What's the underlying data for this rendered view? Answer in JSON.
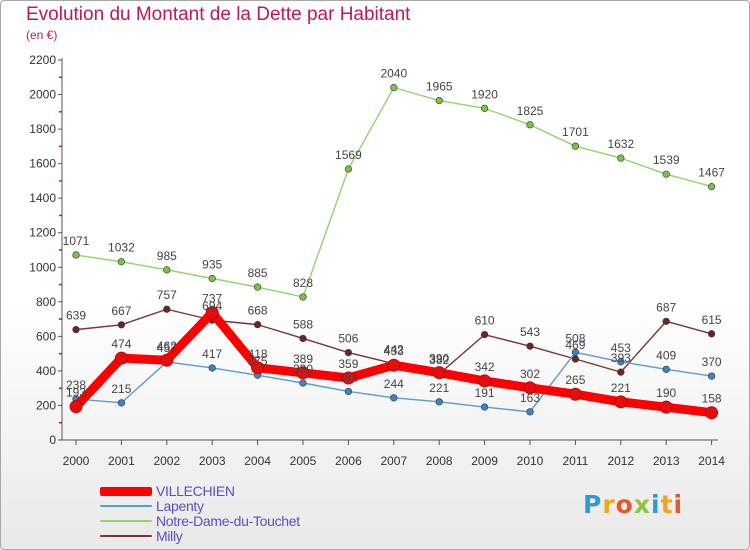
{
  "header": {
    "title": "Evolution du Montant de la Dette par Habitant",
    "subtitle": "(en €)"
  },
  "logo": {
    "text": "Proxiti"
  },
  "colors": {
    "title": "#c2185b",
    "axis_labels": "#333333",
    "legend_text": "#5b4fc4"
  },
  "chart_data": {
    "type": "line",
    "title": "Evolution du Montant de la Dette par Habitant",
    "subtitle": "(en €)",
    "xlabel": "",
    "ylabel": "",
    "x": [
      "2000",
      "2001",
      "2002",
      "2003",
      "2004",
      "2005",
      "2006",
      "2007",
      "2008",
      "2009",
      "2010",
      "2011",
      "2012",
      "2013",
      "2014"
    ],
    "ylim": [
      0,
      2200
    ],
    "yticks": [
      0,
      200,
      400,
      600,
      800,
      1000,
      1200,
      1400,
      1600,
      1800,
      2000,
      2200
    ],
    "grid": false,
    "legend_position": "bottom-left",
    "series": [
      {
        "name": "VILLECHIEN",
        "color": "#ff0000",
        "marker": "#e01010",
        "emphasis": true,
        "values": [
          193,
          474,
          462,
          737,
          418,
          389,
          359,
          433,
          390,
          342,
          302,
          265,
          221,
          190,
          158
        ],
        "labels": [
          "193",
          "474",
          "462",
          "737",
          "418",
          "389",
          "359",
          "433",
          "390",
          "342",
          "302",
          "265",
          "221",
          "190",
          "158"
        ]
      },
      {
        "name": "Lapenty",
        "color": "#5b9bd5",
        "marker": "#3a86c8",
        "values": [
          238,
          215,
          452,
          417,
          375,
          330,
          281,
          244,
          221,
          191,
          163,
          508,
          453,
          409,
          370
        ],
        "labels": [
          "238",
          "215",
          "452",
          "417",
          "375",
          "330",
          "281",
          "244",
          "221",
          "191",
          "163",
          "508",
          "453",
          "409",
          "370"
        ]
      },
      {
        "name": "Notre-Dame-du-Touchet",
        "color": "#92d36e",
        "marker": "#79c34a",
        "values": [
          1071,
          1032,
          985,
          935,
          885,
          828,
          1569,
          2040,
          1965,
          1920,
          1825,
          1701,
          1632,
          1539,
          1467
        ],
        "labels": [
          "1071",
          "1032",
          "985",
          "935",
          "885",
          "828",
          "1569",
          "2040",
          "1965",
          "1920",
          "1825",
          "1701",
          "1632",
          "1539",
          "1467"
        ]
      },
      {
        "name": "Milly",
        "color": "#7b3333",
        "marker": "#6b2525",
        "values": [
          639,
          667,
          757,
          694,
          668,
          588,
          506,
          442,
          382,
          610,
          543,
          469,
          393,
          687,
          615
        ],
        "labels": [
          "639",
          "667",
          "757",
          "694",
          "668",
          "588",
          "506",
          "442",
          "382",
          "610",
          "543",
          "469",
          "393",
          "687",
          "615"
        ]
      }
    ]
  }
}
